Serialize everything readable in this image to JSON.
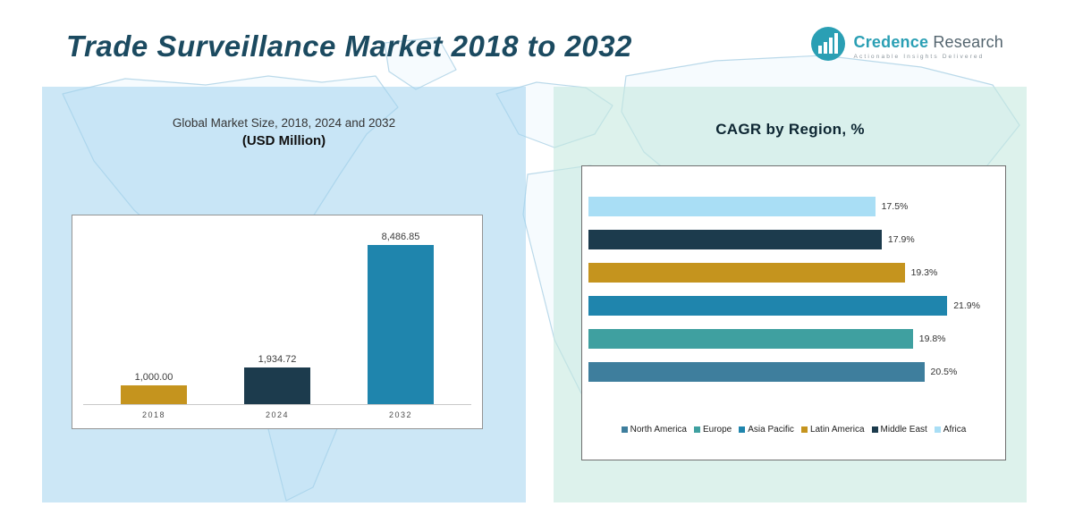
{
  "header": {
    "title": "Trade Surveillance Market 2018 to 2032",
    "logo": {
      "brand_first": "Credence",
      "brand_second": "Research",
      "tagline": "Actionable Insights Delivered"
    }
  },
  "colors": {
    "brand_teal": "#2a9fb4",
    "title_dark_teal": "#1b4a60"
  },
  "left_panel": {
    "subtitle_line1": "Global Market Size, 2018, 2024 and 2032",
    "subtitle_line2": "(USD Million)"
  },
  "right_panel": {
    "title": "CAGR by Region, %"
  },
  "chart_data": [
    {
      "type": "bar",
      "orientation": "vertical",
      "title": "Global Market Size, 2018, 2024 and 2032 (USD Million)",
      "categories": [
        "2018",
        "2024",
        "2032"
      ],
      "values": [
        1000.0,
        1934.72,
        8486.85
      ],
      "value_labels": [
        "1,000.00",
        "1,934.72",
        "8,486.85"
      ],
      "bar_colors": [
        "#c5941e",
        "#1c3b4d",
        "#1f85ad"
      ],
      "ylim": [
        0,
        9500
      ],
      "grid": false,
      "legend_position": "none"
    },
    {
      "type": "bar",
      "orientation": "horizontal",
      "title": "CAGR by Region, %",
      "categories": [
        "Africa",
        "Middle East",
        "Latin America",
        "Asia Pacific",
        "Europe",
        "North America"
      ],
      "values": [
        17.5,
        17.9,
        19.3,
        21.9,
        19.8,
        20.5
      ],
      "value_labels": [
        "17.5%",
        "17.9%",
        "19.3%",
        "21.9%",
        "19.8%",
        "20.5%"
      ],
      "bar_colors": [
        "#a9def5",
        "#1c3b4d",
        "#c5941e",
        "#1f85ad",
        "#3fa0a0",
        "#3e7e9d"
      ],
      "xlim": [
        0,
        25
      ],
      "grid": false,
      "legend_position": "bottom",
      "legend": [
        {
          "label": "North America",
          "color": "#3e7e9d"
        },
        {
          "label": "Europe",
          "color": "#3fa0a0"
        },
        {
          "label": "Asia Pacific",
          "color": "#1f85ad"
        },
        {
          "label": "Latin America",
          "color": "#c5941e"
        },
        {
          "label": "Middle East",
          "color": "#1c3b4d"
        },
        {
          "label": "Africa",
          "color": "#a9def5"
        }
      ]
    }
  ]
}
